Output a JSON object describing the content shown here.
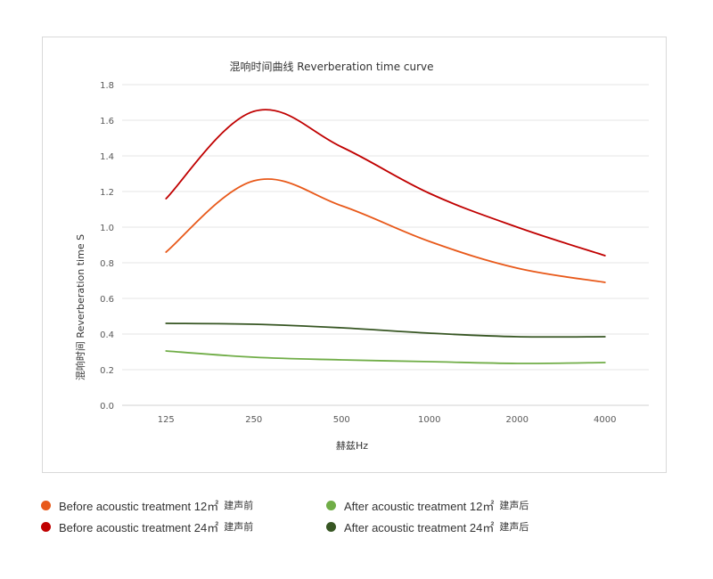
{
  "chart_data": {
    "type": "line",
    "title": "混响时间曲线 Reverberation time curve",
    "xlabel": "赫兹Hz",
    "ylabel": "混响时间  Reverberation time  S",
    "categories": [
      "125",
      "250",
      "500",
      "1000",
      "2000",
      "4000"
    ],
    "ylim": [
      0,
      1.8
    ],
    "yticks": [
      "0.0",
      "0.2",
      "0.4",
      "0.6",
      "0.8",
      "1.0",
      "1.2",
      "1.4",
      "1.6",
      "1.8"
    ],
    "grid": true,
    "legend_position": "bottom",
    "series": [
      {
        "name": "Before acoustic treatment 12㎡ 建声前",
        "en": "Before acoustic treatment 12㎡",
        "cn": "建声前",
        "color": "#e8591a",
        "values": [
          0.86,
          1.26,
          1.12,
          0.92,
          0.77,
          0.69
        ]
      },
      {
        "name": "Before acoustic treatment 24㎡ 建声前",
        "en": "Before acoustic treatment 24㎡",
        "cn": "建声前",
        "color": "#c00000",
        "values": [
          1.16,
          1.65,
          1.45,
          1.19,
          1.0,
          0.84
        ]
      },
      {
        "name": "After acoustic treatment 12㎡ 建声后",
        "en": "After acoustic treatment 12㎡",
        "cn": "建声后",
        "color": "#70ad47",
        "values": [
          0.305,
          0.27,
          0.255,
          0.245,
          0.235,
          0.24
        ]
      },
      {
        "name": "After acoustic treatment 24㎡ 建声后",
        "en": "After acoustic treatment 24㎡",
        "cn": "建声后",
        "color": "#375623",
        "values": [
          0.46,
          0.455,
          0.435,
          0.405,
          0.385,
          0.385
        ]
      }
    ]
  }
}
